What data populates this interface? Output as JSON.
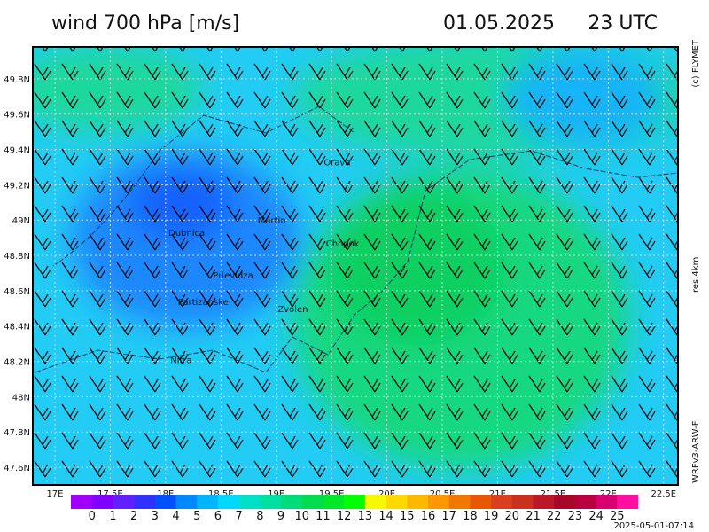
{
  "header": {
    "title": "wind 700 hPa [m/s]",
    "date": "01.05.2025",
    "time": "23 UTC"
  },
  "side": {
    "copyright": "(c) FLYMET",
    "resolution": "res.4km",
    "model": "WRFv3-ARW-F"
  },
  "footer": "2025-05-01-07:14",
  "map": {
    "lon_lim": [
      16.8,
      22.63
    ],
    "lat_lim": [
      47.5,
      49.98
    ],
    "lat_ticks": [
      {
        "value": 49.8,
        "label": "49.8N"
      },
      {
        "value": 49.6,
        "label": "49.6N"
      },
      {
        "value": 49.4,
        "label": "49.4N"
      },
      {
        "value": 49.2,
        "label": "49.2N"
      },
      {
        "value": 49,
        "label": "49N"
      },
      {
        "value": 48.8,
        "label": "48.8N"
      },
      {
        "value": 48.6,
        "label": "48.6N"
      },
      {
        "value": 48.4,
        "label": "48.4N"
      },
      {
        "value": 48.2,
        "label": "48.2N"
      },
      {
        "value": 48,
        "label": "48N"
      },
      {
        "value": 47.8,
        "label": "47.8N"
      },
      {
        "value": 47.6,
        "label": "47.6N"
      }
    ],
    "lon_ticks": [
      {
        "value": 17,
        "label": "17E"
      },
      {
        "value": 17.5,
        "label": "17.5E"
      },
      {
        "value": 18,
        "label": "18E"
      },
      {
        "value": 18.5,
        "label": "18.5E"
      },
      {
        "value": 19,
        "label": "19E"
      },
      {
        "value": 19.5,
        "label": "19.5E"
      },
      {
        "value": 20,
        "label": "20E"
      },
      {
        "value": 20.5,
        "label": "20.5E"
      },
      {
        "value": 21,
        "label": "21E"
      },
      {
        "value": 21.5,
        "label": "21.5E"
      },
      {
        "value": 22,
        "label": "22E"
      },
      {
        "value": 22.5,
        "label": "22.5E"
      }
    ],
    "cities": [
      {
        "name": "Orava",
        "lon": 19.55,
        "lat": 49.33
      },
      {
        "name": "Dubnica",
        "lon": 18.19,
        "lat": 48.93
      },
      {
        "name": "Martin",
        "lon": 18.96,
        "lat": 49.0
      },
      {
        "name": "Chopok",
        "lon": 19.6,
        "lat": 48.87
      },
      {
        "name": "Prievidza",
        "lon": 18.61,
        "lat": 48.69
      },
      {
        "name": "Partizanske",
        "lon": 18.34,
        "lat": 48.54
      },
      {
        "name": "Zvolen",
        "lon": 19.15,
        "lat": 48.5
      },
      {
        "name": "Nitra",
        "lon": 18.14,
        "lat": 48.21
      }
    ]
  },
  "colorbar": {
    "colors": [
      "#a000ff",
      "#8000ff",
      "#6020ff",
      "#3030ff",
      "#0050ff",
      "#0088ff",
      "#00b4ff",
      "#00d8ff",
      "#00e0c8",
      "#00e0a0",
      "#00dc78",
      "#00dc50",
      "#00e828",
      "#00ff00",
      "#f8f800",
      "#ffd800",
      "#ffb800",
      "#ff9800",
      "#f07800",
      "#e85800",
      "#d84020",
      "#c83020",
      "#b81828",
      "#a80828",
      "#b80040",
      "#d80070",
      "#ff10a0"
    ],
    "labels": [
      0,
      1,
      2,
      3,
      4,
      5,
      6,
      7,
      8,
      9,
      10,
      11,
      12,
      13,
      14,
      15,
      16,
      17,
      18,
      19,
      20,
      21,
      22,
      23,
      24,
      25
    ]
  }
}
